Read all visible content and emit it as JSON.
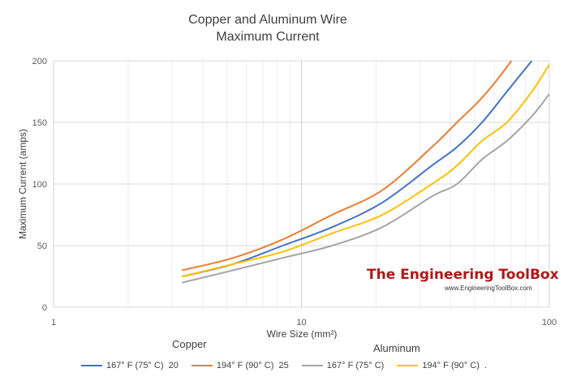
{
  "chart_data": {
    "type": "line",
    "title": [
      "Copper and Aluminum Wire",
      "Maximum Current"
    ],
    "xlabel": "Wire Size (mm²)",
    "ylabel": "Maximum Current (amps)",
    "xscale": "log",
    "xlim": [
      1,
      100
    ],
    "ylim": [
      0,
      200
    ],
    "x_ticks": [
      "1",
      "10",
      "100"
    ],
    "y_ticks": [
      "0",
      "50",
      "100",
      "150",
      "200"
    ],
    "grid": true,
    "legend_position": "bottom",
    "legend_groups": [
      "Copper",
      "Aluminum"
    ],
    "x": [
      3.3,
      5.3,
      8.4,
      13.3,
      21.2,
      33.6,
      42.4,
      53.5,
      67.4,
      85,
      100
    ],
    "series": [
      {
        "name": "167° F (75° C)  20",
        "color": "#4472c4",
        "values": [
          25,
          35,
          50,
          65,
          85,
          115,
          130,
          150,
          175,
          200,
          null
        ]
      },
      {
        "name": "194° F (90° C)  25",
        "color": "#ed7d31",
        "values": [
          30,
          40,
          55,
          75,
          95,
          130,
          150,
          170,
          195,
          225,
          null
        ]
      },
      {
        "name": "167° F (75° C)",
        "color": "#a5a5a5",
        "values": [
          20,
          30,
          40,
          50,
          65,
          90,
          100,
          120,
          135,
          155,
          173
        ]
      },
      {
        "name": "194° F (90° C)  .",
        "color": "#ffc000",
        "values": [
          25,
          35,
          45,
          60,
          75,
          100,
          115,
          135,
          150,
          175,
          197
        ]
      }
    ]
  },
  "watermark": {
    "text": "The Engineering ToolBox",
    "url": "www.EngineeringToolBox.com"
  }
}
